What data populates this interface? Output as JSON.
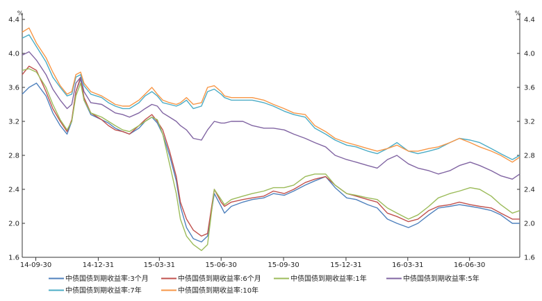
{
  "chart_data": {
    "type": "line",
    "title": "",
    "xlabel": "",
    "ylabel": "",
    "y_unit_left": "%",
    "y_unit_right": "%",
    "ylim": [
      1.6,
      4.4
    ],
    "yticks": [
      "4.4",
      "4.0",
      "3.6",
      "3.2",
      "2.8",
      "2.4",
      "2.0",
      "1.6"
    ],
    "xlim": [
      "2014-09-10",
      "2016-09-12"
    ],
    "xticks": [
      "14-09-30",
      "14-12-31",
      "15-03-31",
      "15-06-30",
      "15-09-30",
      "15-12-31",
      "16-03-31",
      "16-06-30"
    ],
    "grid": false,
    "legend_position": "bottom",
    "series": [
      {
        "name": "中债国债到期收益率:3个月",
        "color": "#4f81bd",
        "x": [
          "2014-09-10",
          "2014-09-20",
          "2014-10-01",
          "2014-10-15",
          "2014-10-25",
          "2014-11-05",
          "2014-11-15",
          "2014-11-22",
          "2014-11-28",
          "2014-12-05",
          "2014-12-10",
          "2014-12-20",
          "2015-01-05",
          "2015-01-15",
          "2015-01-25",
          "2015-02-05",
          "2015-02-15",
          "2015-03-01",
          "2015-03-10",
          "2015-03-20",
          "2015-03-28",
          "2015-04-05",
          "2015-04-15",
          "2015-04-25",
          "2015-05-01",
          "2015-05-10",
          "2015-05-20",
          "2015-06-01",
          "2015-06-10",
          "2015-06-20",
          "2015-06-30",
          "2015-07-05",
          "2015-07-15",
          "2015-08-01",
          "2015-08-15",
          "2015-09-01",
          "2015-09-15",
          "2015-10-01",
          "2015-10-15",
          "2015-11-01",
          "2015-11-15",
          "2015-12-01",
          "2015-12-15",
          "2016-01-01",
          "2016-01-15",
          "2016-02-01",
          "2016-02-15",
          "2016-03-01",
          "2016-03-15",
          "2016-04-01",
          "2016-04-15",
          "2016-05-01",
          "2016-05-15",
          "2016-06-01",
          "2016-06-15",
          "2016-07-01",
          "2016-07-15",
          "2016-08-01",
          "2016-08-15",
          "2016-09-01",
          "2016-09-12"
        ],
        "values": [
          3.52,
          3.6,
          3.65,
          3.5,
          3.3,
          3.15,
          3.05,
          3.2,
          3.55,
          3.7,
          3.45,
          3.28,
          3.22,
          3.18,
          3.12,
          3.08,
          3.05,
          3.12,
          3.2,
          3.25,
          3.18,
          3.05,
          2.8,
          2.5,
          2.2,
          1.95,
          1.82,
          1.78,
          1.85,
          2.35,
          2.2,
          2.12,
          2.2,
          2.25,
          2.28,
          2.3,
          2.35,
          2.33,
          2.38,
          2.45,
          2.5,
          2.55,
          2.42,
          2.3,
          2.28,
          2.22,
          2.18,
          2.05,
          2.0,
          1.95,
          2.0,
          2.1,
          2.18,
          2.2,
          2.22,
          2.2,
          2.18,
          2.15,
          2.1,
          2.0,
          2.0
        ]
      },
      {
        "name": "中债国债到期收益率:6个月",
        "color": "#c0504d",
        "x": [
          "2014-09-10",
          "2014-09-20",
          "2014-10-01",
          "2014-10-15",
          "2014-10-25",
          "2014-11-05",
          "2014-11-15",
          "2014-11-22",
          "2014-11-28",
          "2014-12-05",
          "2014-12-10",
          "2014-12-20",
          "2015-01-05",
          "2015-01-15",
          "2015-01-25",
          "2015-02-05",
          "2015-02-15",
          "2015-03-01",
          "2015-03-10",
          "2015-03-20",
          "2015-03-28",
          "2015-04-05",
          "2015-04-15",
          "2015-04-25",
          "2015-05-01",
          "2015-05-10",
          "2015-05-20",
          "2015-06-01",
          "2015-06-10",
          "2015-06-20",
          "2015-06-30",
          "2015-07-05",
          "2015-07-15",
          "2015-08-01",
          "2015-08-15",
          "2015-09-01",
          "2015-09-15",
          "2015-10-01",
          "2015-10-15",
          "2015-11-01",
          "2015-11-15",
          "2015-12-01",
          "2015-12-15",
          "2016-01-01",
          "2016-01-15",
          "2016-02-01",
          "2016-02-15",
          "2016-03-01",
          "2016-03-15",
          "2016-04-01",
          "2016-04-15",
          "2016-05-01",
          "2016-05-15",
          "2016-06-01",
          "2016-06-15",
          "2016-07-01",
          "2016-07-15",
          "2016-08-01",
          "2016-08-15",
          "2016-09-01",
          "2016-09-12"
        ],
        "values": [
          3.75,
          3.85,
          3.8,
          3.55,
          3.35,
          3.2,
          3.08,
          3.22,
          3.55,
          3.72,
          3.48,
          3.3,
          3.22,
          3.15,
          3.1,
          3.08,
          3.05,
          3.15,
          3.22,
          3.28,
          3.2,
          3.1,
          2.85,
          2.55,
          2.25,
          2.05,
          1.92,
          1.85,
          1.88,
          2.4,
          2.25,
          2.2,
          2.25,
          2.28,
          2.3,
          2.32,
          2.38,
          2.35,
          2.4,
          2.48,
          2.52,
          2.55,
          2.45,
          2.35,
          2.32,
          2.28,
          2.25,
          2.12,
          2.08,
          2.02,
          2.05,
          2.15,
          2.2,
          2.22,
          2.25,
          2.22,
          2.2,
          2.18,
          2.12,
          2.05,
          2.05
        ]
      },
      {
        "name": "中债国债到期收益率:1年",
        "color": "#9bbb59",
        "x": [
          "2014-09-10",
          "2014-09-20",
          "2014-10-01",
          "2014-10-15",
          "2014-10-25",
          "2014-11-05",
          "2014-11-15",
          "2014-11-22",
          "2014-11-28",
          "2014-12-05",
          "2014-12-10",
          "2014-12-20",
          "2015-01-05",
          "2015-01-15",
          "2015-01-25",
          "2015-02-05",
          "2015-02-15",
          "2015-03-01",
          "2015-03-10",
          "2015-03-20",
          "2015-03-28",
          "2015-04-05",
          "2015-04-15",
          "2015-04-25",
          "2015-05-01",
          "2015-05-10",
          "2015-05-20",
          "2015-06-01",
          "2015-06-10",
          "2015-06-20",
          "2015-06-30",
          "2015-07-05",
          "2015-07-15",
          "2015-08-01",
          "2015-08-15",
          "2015-09-01",
          "2015-09-15",
          "2015-10-01",
          "2015-10-15",
          "2015-11-01",
          "2015-11-15",
          "2015-12-01",
          "2015-12-15",
          "2016-01-01",
          "2016-01-15",
          "2016-02-01",
          "2016-02-15",
          "2016-03-01",
          "2016-03-15",
          "2016-04-01",
          "2016-04-15",
          "2016-05-01",
          "2016-05-15",
          "2016-06-01",
          "2016-06-15",
          "2016-07-01",
          "2016-07-15",
          "2016-08-01",
          "2016-08-15",
          "2016-09-01",
          "2016-09-12"
        ],
        "values": [
          3.8,
          3.82,
          3.78,
          3.6,
          3.4,
          3.22,
          3.1,
          3.2,
          3.5,
          3.65,
          3.45,
          3.3,
          3.25,
          3.2,
          3.15,
          3.1,
          3.08,
          3.15,
          3.2,
          3.25,
          3.22,
          3.05,
          2.7,
          2.35,
          2.05,
          1.85,
          1.75,
          1.68,
          1.75,
          2.4,
          2.28,
          2.22,
          2.28,
          2.32,
          2.35,
          2.38,
          2.42,
          2.42,
          2.45,
          2.55,
          2.58,
          2.58,
          2.45,
          2.35,
          2.33,
          2.3,
          2.28,
          2.18,
          2.12,
          2.05,
          2.1,
          2.2,
          2.3,
          2.35,
          2.38,
          2.42,
          2.4,
          2.32,
          2.22,
          2.12,
          2.15
        ]
      },
      {
        "name": "中债国债到期收益率:5年",
        "color": "#8064a2",
        "x": [
          "2014-09-10",
          "2014-09-20",
          "2014-10-01",
          "2014-10-15",
          "2014-10-25",
          "2014-11-05",
          "2014-11-15",
          "2014-11-22",
          "2014-11-28",
          "2014-12-05",
          "2014-12-10",
          "2014-12-20",
          "2015-01-05",
          "2015-01-15",
          "2015-01-25",
          "2015-02-05",
          "2015-02-15",
          "2015-03-01",
          "2015-03-10",
          "2015-03-20",
          "2015-03-28",
          "2015-04-05",
          "2015-04-15",
          "2015-04-25",
          "2015-05-01",
          "2015-05-10",
          "2015-05-20",
          "2015-06-01",
          "2015-06-10",
          "2015-06-20",
          "2015-06-30",
          "2015-07-05",
          "2015-07-15",
          "2015-08-01",
          "2015-08-15",
          "2015-09-01",
          "2015-09-15",
          "2015-10-01",
          "2015-10-15",
          "2015-11-01",
          "2015-11-15",
          "2015-12-01",
          "2015-12-15",
          "2016-01-01",
          "2016-01-15",
          "2016-02-01",
          "2016-02-15",
          "2016-03-01",
          "2016-03-15",
          "2016-04-01",
          "2016-04-15",
          "2016-05-01",
          "2016-05-15",
          "2016-06-01",
          "2016-06-15",
          "2016-07-01",
          "2016-07-15",
          "2016-08-01",
          "2016-08-15",
          "2016-09-01",
          "2016-09-12"
        ],
        "values": [
          3.98,
          4.02,
          3.92,
          3.75,
          3.58,
          3.45,
          3.35,
          3.4,
          3.65,
          3.72,
          3.55,
          3.42,
          3.4,
          3.35,
          3.3,
          3.28,
          3.25,
          3.3,
          3.35,
          3.4,
          3.38,
          3.3,
          3.25,
          3.2,
          3.15,
          3.1,
          3.0,
          2.98,
          3.1,
          3.2,
          3.18,
          3.18,
          3.2,
          3.2,
          3.15,
          3.12,
          3.12,
          3.1,
          3.05,
          3.0,
          2.95,
          2.9,
          2.8,
          2.75,
          2.72,
          2.68,
          2.65,
          2.75,
          2.8,
          2.7,
          2.65,
          2.62,
          2.58,
          2.62,
          2.68,
          2.72,
          2.68,
          2.62,
          2.56,
          2.52,
          2.58
        ]
      },
      {
        "name": "中债国债到期收益率:7年",
        "color": "#4bacc6",
        "x": [
          "2014-09-10",
          "2014-09-20",
          "2014-10-01",
          "2014-10-15",
          "2014-10-25",
          "2014-11-05",
          "2014-11-15",
          "2014-11-22",
          "2014-11-28",
          "2014-12-05",
          "2014-12-10",
          "2014-12-20",
          "2015-01-05",
          "2015-01-15",
          "2015-01-25",
          "2015-02-05",
          "2015-02-15",
          "2015-03-01",
          "2015-03-10",
          "2015-03-20",
          "2015-03-28",
          "2015-04-05",
          "2015-04-15",
          "2015-04-25",
          "2015-05-01",
          "2015-05-10",
          "2015-05-20",
          "2015-06-01",
          "2015-06-10",
          "2015-06-20",
          "2015-06-30",
          "2015-07-05",
          "2015-07-15",
          "2015-08-01",
          "2015-08-15",
          "2015-09-01",
          "2015-09-15",
          "2015-10-01",
          "2015-10-15",
          "2015-11-01",
          "2015-11-15",
          "2015-12-01",
          "2015-12-15",
          "2016-01-01",
          "2016-01-15",
          "2016-02-01",
          "2016-02-15",
          "2016-03-01",
          "2016-03-15",
          "2016-04-01",
          "2016-04-15",
          "2016-05-01",
          "2016-05-15",
          "2016-06-01",
          "2016-06-15",
          "2016-07-01",
          "2016-07-15",
          "2016-08-01",
          "2016-08-15",
          "2016-09-01",
          "2016-09-12"
        ],
        "values": [
          4.18,
          4.22,
          4.08,
          3.9,
          3.72,
          3.6,
          3.5,
          3.52,
          3.72,
          3.75,
          3.62,
          3.52,
          3.48,
          3.42,
          3.38,
          3.35,
          3.35,
          3.42,
          3.5,
          3.55,
          3.5,
          3.42,
          3.4,
          3.38,
          3.4,
          3.45,
          3.35,
          3.38,
          3.55,
          3.58,
          3.52,
          3.48,
          3.45,
          3.45,
          3.45,
          3.42,
          3.38,
          3.32,
          3.28,
          3.25,
          3.12,
          3.05,
          2.98,
          2.92,
          2.9,
          2.85,
          2.82,
          2.88,
          2.95,
          2.85,
          2.82,
          2.85,
          2.88,
          2.95,
          3.0,
          2.98,
          2.95,
          2.88,
          2.82,
          2.75,
          2.8
        ]
      },
      {
        "name": "中债国债到期收益率:10年",
        "color": "#f79646",
        "x": [
          "2014-09-10",
          "2014-09-20",
          "2014-10-01",
          "2014-10-15",
          "2014-10-25",
          "2014-11-05",
          "2014-11-15",
          "2014-11-22",
          "2014-11-28",
          "2014-12-05",
          "2014-12-10",
          "2014-12-20",
          "2015-01-05",
          "2015-01-15",
          "2015-01-25",
          "2015-02-05",
          "2015-02-15",
          "2015-03-01",
          "2015-03-10",
          "2015-03-20",
          "2015-03-28",
          "2015-04-05",
          "2015-04-15",
          "2015-04-25",
          "2015-05-01",
          "2015-05-10",
          "2015-05-20",
          "2015-06-01",
          "2015-06-10",
          "2015-06-20",
          "2015-06-30",
          "2015-07-05",
          "2015-07-15",
          "2015-08-01",
          "2015-08-15",
          "2015-09-01",
          "2015-09-15",
          "2015-10-01",
          "2015-10-15",
          "2015-11-01",
          "2015-11-15",
          "2015-12-01",
          "2015-12-15",
          "2016-01-01",
          "2016-01-15",
          "2016-02-01",
          "2016-02-15",
          "2016-03-01",
          "2016-03-15",
          "2016-04-01",
          "2016-04-15",
          "2016-05-01",
          "2016-05-15",
          "2016-06-01",
          "2016-06-15",
          "2016-07-01",
          "2016-07-15",
          "2016-08-01",
          "2016-08-15",
          "2016-09-01",
          "2016-09-12"
        ],
        "values": [
          4.25,
          4.3,
          4.12,
          3.95,
          3.78,
          3.62,
          3.52,
          3.55,
          3.75,
          3.78,
          3.65,
          3.55,
          3.5,
          3.45,
          3.4,
          3.38,
          3.38,
          3.45,
          3.52,
          3.6,
          3.52,
          3.45,
          3.42,
          3.4,
          3.42,
          3.48,
          3.4,
          3.42,
          3.6,
          3.62,
          3.55,
          3.5,
          3.48,
          3.48,
          3.48,
          3.45,
          3.4,
          3.35,
          3.3,
          3.28,
          3.15,
          3.08,
          3.0,
          2.95,
          2.92,
          2.88,
          2.85,
          2.88,
          2.92,
          2.85,
          2.85,
          2.88,
          2.9,
          2.95,
          3.0,
          2.95,
          2.9,
          2.85,
          2.8,
          2.72,
          2.78
        ]
      }
    ]
  }
}
